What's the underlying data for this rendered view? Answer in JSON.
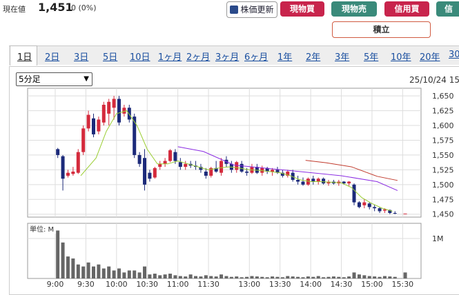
{
  "header": {
    "price_label": "現在値",
    "price": "1,451",
    "change": "0 (0%)"
  },
  "buttons": [
    "株価更新",
    "現物買",
    "現物売",
    "信用買",
    "信"
  ],
  "tsumitate": "積立",
  "tabs": [
    "1日",
    "2日",
    "3日",
    "5日",
    "10日",
    "1ヶ月",
    "2ヶ月",
    "3ヶ月",
    "6ヶ月",
    "1年",
    "2年",
    "3年",
    "5年",
    "10年",
    "20年",
    "30"
  ],
  "interval": "5分足",
  "datetime": "25/10/24 15",
  "chart": {
    "type": "candlestick",
    "xlim": [
      -5.4,
      71.6
    ],
    "xticks": [
      {
        "value": 0,
        "label": "9:00"
      },
      {
        "value": 6,
        "label": "9:30"
      },
      {
        "value": 12,
        "label": "10:00"
      },
      {
        "value": 18,
        "label": "10:30"
      },
      {
        "value": 24,
        "label": "11:00"
      },
      {
        "value": 30,
        "label": "11:30"
      },
      {
        "value": 38,
        "label": "13:00"
      },
      {
        "value": 44,
        "label": "13:30"
      },
      {
        "value": 50,
        "label": "14:00"
      },
      {
        "value": 56,
        "label": "14:30"
      },
      {
        "value": 62,
        "label": "15:00"
      },
      {
        "value": 68,
        "label": "15:30"
      }
    ],
    "ylim": [
      1445,
      1663
    ],
    "yticks": [
      {
        "value": 1450,
        "label": "1,450"
      },
      {
        "value": 1475,
        "label": "1,475"
      },
      {
        "value": 1500,
        "label": "1,500"
      },
      {
        "value": 1525,
        "label": "1,525"
      },
      {
        "value": 1550,
        "label": "1,550"
      },
      {
        "value": 1575,
        "label": "1,575"
      },
      {
        "value": 1600,
        "label": "1,600"
      },
      {
        "value": 1625,
        "label": "1,625"
      },
      {
        "value": 1650,
        "label": "1,650"
      }
    ],
    "up_color": "#d42a3c",
    "down_color": "#1c2a7a",
    "x": [
      0,
      1,
      2,
      3,
      4,
      5,
      6,
      7,
      8,
      9,
      10,
      11,
      12,
      13,
      14,
      15,
      16,
      17,
      18,
      19,
      20,
      21,
      22,
      23,
      24,
      25,
      26,
      27,
      28,
      29,
      30,
      31,
      32,
      33,
      34,
      35,
      36,
      37,
      38,
      39,
      40,
      41,
      42,
      43,
      44,
      45,
      46,
      47,
      48,
      49,
      50,
      51,
      52,
      53,
      54,
      55,
      56,
      57,
      58,
      59,
      60,
      61,
      62,
      63,
      64,
      65,
      66,
      68
    ],
    "open": [
      1560,
      1548,
      1515,
      1518,
      1520,
      1555,
      1595,
      1612,
      1590,
      1605,
      1620,
      1630,
      1645,
      1620,
      1630,
      1615,
      1550,
      1545,
      1520,
      1512,
      1530,
      1535,
      1540,
      1555,
      1538,
      1530,
      1535,
      1532,
      1530,
      1522,
      1515,
      1528,
      1520,
      1542,
      1535,
      1525,
      1535,
      1522,
      1520,
      1530,
      1520,
      1528,
      1522,
      1525,
      1520,
      1515,
      1520,
      1508,
      1505,
      1500,
      1510,
      1505,
      1510,
      1502,
      1505,
      1502,
      1505,
      1502,
      1500,
      1470,
      1465,
      1468,
      1462,
      1460,
      1456,
      1457,
      1452,
      1451
    ],
    "high": [
      1562,
      1550,
      1525,
      1530,
      1560,
      1600,
      1625,
      1620,
      1615,
      1640,
      1645,
      1650,
      1650,
      1635,
      1635,
      1620,
      1555,
      1560,
      1525,
      1530,
      1540,
      1545,
      1560,
      1560,
      1545,
      1540,
      1540,
      1540,
      1535,
      1528,
      1530,
      1540,
      1545,
      1548,
      1540,
      1540,
      1540,
      1528,
      1535,
      1535,
      1532,
      1530,
      1528,
      1530,
      1525,
      1525,
      1525,
      1515,
      1512,
      1512,
      1515,
      1512,
      1512,
      1508,
      1508,
      1508,
      1506,
      1506,
      1502,
      1472,
      1475,
      1470,
      1466,
      1462,
      1460,
      1458,
      1455,
      1451
    ],
    "low": [
      1545,
      1490,
      1512,
      1515,
      1518,
      1550,
      1590,
      1580,
      1585,
      1600,
      1600,
      1610,
      1600,
      1615,
      1605,
      1545,
      1530,
      1490,
      1505,
      1510,
      1525,
      1530,
      1538,
      1535,
      1525,
      1525,
      1528,
      1525,
      1520,
      1510,
      1512,
      1520,
      1515,
      1530,
      1520,
      1520,
      1520,
      1515,
      1518,
      1518,
      1515,
      1518,
      1515,
      1518,
      1512,
      1512,
      1505,
      1500,
      1498,
      1498,
      1500,
      1500,
      1500,
      1498,
      1500,
      1498,
      1500,
      1498,
      1465,
      1460,
      1460,
      1458,
      1455,
      1452,
      1452,
      1450,
      1450,
      1451
    ],
    "close": [
      1550,
      1510,
      1520,
      1522,
      1555,
      1595,
      1618,
      1585,
      1610,
      1635,
      1640,
      1645,
      1605,
      1630,
      1610,
      1550,
      1535,
      1500,
      1510,
      1528,
      1535,
      1540,
      1558,
      1540,
      1530,
      1535,
      1532,
      1530,
      1525,
      1515,
      1528,
      1522,
      1540,
      1535,
      1525,
      1538,
      1522,
      1520,
      1530,
      1520,
      1528,
      1522,
      1525,
      1520,
      1515,
      1522,
      1508,
      1505,
      1500,
      1510,
      1505,
      1510,
      1502,
      1505,
      1502,
      1505,
      1502,
      1505,
      1470,
      1462,
      1470,
      1462,
      1460,
      1455,
      1458,
      1452,
      1451,
      1451
    ],
    "moving_averages": [
      {
        "color": "#9acd32",
        "x": [
          5,
          8,
          10,
          12,
          14,
          16,
          18,
          20,
          22,
          24,
          26,
          28,
          30,
          32,
          34,
          36,
          38,
          40,
          42,
          44,
          46,
          48,
          50,
          52,
          54,
          56,
          58,
          60,
          62,
          64,
          66
        ],
        "values": [
          1515,
          1545,
          1590,
          1620,
          1625,
          1600,
          1560,
          1535,
          1535,
          1540,
          1535,
          1530,
          1525,
          1528,
          1530,
          1528,
          1525,
          1524,
          1522,
          1520,
          1515,
          1508,
          1505,
          1505,
          1504,
          1503,
          1495,
          1478,
          1468,
          1460,
          1455
        ]
      },
      {
        "color": "#8a2be2",
        "x": [
          24,
          29,
          35,
          42,
          49,
          56,
          63,
          67
        ],
        "values": [
          1564,
          1556,
          1533,
          1527,
          1521,
          1515,
          1505,
          1490
        ]
      },
      {
        "color": "#c0392b",
        "x": [
          49,
          53,
          58,
          63,
          67
        ],
        "values": [
          1541,
          1537,
          1530,
          1514,
          1507
        ]
      }
    ],
    "volume_unit": "単位: M",
    "vlim": [
      0,
      1.38
    ],
    "vticks": [
      {
        "value": 1,
        "label": "1M"
      }
    ],
    "volume_color": "#666666",
    "volume": [
      1.2,
      0.9,
      0.55,
      0.5,
      0.35,
      0.3,
      0.4,
      0.3,
      0.35,
      0.25,
      0.3,
      0.2,
      0.25,
      0.15,
      0.2,
      0.2,
      0.15,
      0.3,
      0.1,
      0.12,
      0.08,
      0.1,
      0.12,
      0.08,
      0.06,
      0.05,
      0.1,
      0.06,
      0.05,
      0.08,
      0.06,
      0.05,
      0.1,
      0.06,
      0.04,
      0.05,
      0.03,
      0.04,
      0.06,
      0.05,
      0.04,
      0.03,
      0.05,
      0.04,
      0.03,
      0.06,
      0.05,
      0.04,
      0.03,
      0.05,
      0.04,
      0.06,
      0.03,
      0.04,
      0.05,
      0.04,
      0.03,
      0.05,
      0.15,
      0.1,
      0.08,
      0.06,
      0.05,
      0.04,
      0.06,
      0.05,
      0.04,
      0.15
    ]
  }
}
